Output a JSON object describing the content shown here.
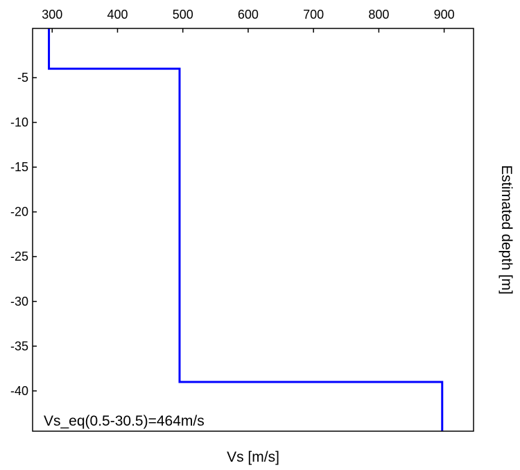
{
  "chart_data": {
    "type": "line",
    "title": "",
    "xlabel": "Vs [m/s]",
    "ylabel": "Estimated depth [m]",
    "x_ticks": [
      300,
      400,
      500,
      600,
      700,
      800,
      900
    ],
    "y_ticks": [
      -5,
      -10,
      -15,
      -20,
      -25,
      -30,
      -35,
      -40
    ],
    "xlim": [
      270,
      945
    ],
    "ylim": [
      -44.5,
      0.5
    ],
    "x_axis_position": "top",
    "y_label_position": "right",
    "grid": false,
    "annotation": "Vs_eq(0.5-30.5)=464m/s",
    "series": [
      {
        "color": "#0000ff",
        "points": [
          [
            295,
            0.5
          ],
          [
            295,
            -4
          ],
          [
            495,
            -4
          ],
          [
            495,
            -39
          ],
          [
            897,
            -39
          ],
          [
            897,
            -44.5
          ]
        ]
      }
    ]
  }
}
